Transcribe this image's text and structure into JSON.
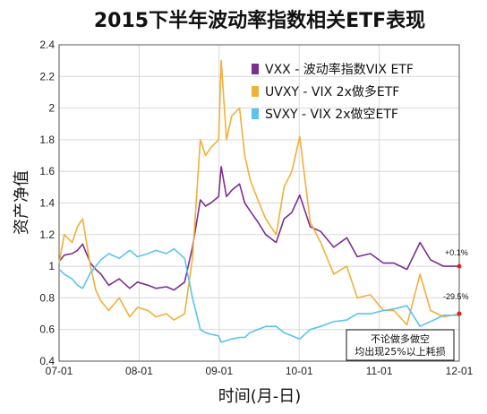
{
  "chart_data": {
    "type": "line",
    "title": "2015下半年波动率指数相关ETF表现",
    "xlabel": "时间(月-日)",
    "ylabel": "资产净值",
    "x_ticks": [
      "07-01",
      "08-01",
      "09-01",
      "10-01",
      "11-01",
      "12-01"
    ],
    "y_ticks": [
      "0.4",
      "0.6",
      "0.8",
      "1",
      "1.2",
      "1.4",
      "1.6",
      "1.8",
      "2",
      "2.2",
      "2.4"
    ],
    "xlim": [
      "2015-07-01",
      "2015-12-01"
    ],
    "ylim": [
      0.4,
      2.4
    ],
    "grid": true,
    "legend_position": "top-right",
    "series": [
      {
        "name": "VXX - 波动率指数VIX ETF",
        "color": "#7b2f8f",
        "x": [
          "2015-07-01",
          "2015-07-03",
          "2015-07-06",
          "2015-07-08",
          "2015-07-10",
          "2015-07-13",
          "2015-07-15",
          "2015-07-17",
          "2015-07-20",
          "2015-07-24",
          "2015-07-28",
          "2015-07-31",
          "2015-08-04",
          "2015-08-07",
          "2015-08-11",
          "2015-08-14",
          "2015-08-18",
          "2015-08-21",
          "2015-08-24",
          "2015-08-26",
          "2015-08-28",
          "2015-08-31",
          "2015-09-01",
          "2015-09-03",
          "2015-09-05",
          "2015-09-08",
          "2015-09-10",
          "2015-09-12",
          "2015-09-15",
          "2015-09-18",
          "2015-09-22",
          "2015-09-25",
          "2015-09-28",
          "2015-10-01",
          "2015-10-05",
          "2015-10-09",
          "2015-10-14",
          "2015-10-19",
          "2015-10-23",
          "2015-10-28",
          "2015-11-02",
          "2015-11-06",
          "2015-11-11",
          "2015-11-16",
          "2015-11-20",
          "2015-11-25",
          "2015-12-01"
        ],
        "values": [
          1.03,
          1.07,
          1.08,
          1.1,
          1.14,
          1.02,
          0.98,
          0.95,
          0.88,
          0.92,
          0.86,
          0.9,
          0.88,
          0.86,
          0.87,
          0.85,
          0.9,
          1.12,
          1.42,
          1.38,
          1.4,
          1.44,
          1.63,
          1.44,
          1.48,
          1.52,
          1.4,
          1.35,
          1.28,
          1.2,
          1.15,
          1.3,
          1.34,
          1.45,
          1.25,
          1.22,
          1.12,
          1.18,
          1.06,
          1.08,
          1.02,
          1.02,
          0.98,
          1.15,
          1.04,
          1.0,
          1.0
        ]
      },
      {
        "name": "UVXY - VIX 2x做多ETF",
        "color": "#f0b03a",
        "x": [
          "2015-07-01",
          "2015-07-03",
          "2015-07-06",
          "2015-07-08",
          "2015-07-10",
          "2015-07-13",
          "2015-07-15",
          "2015-07-17",
          "2015-07-20",
          "2015-07-24",
          "2015-07-28",
          "2015-07-31",
          "2015-08-04",
          "2015-08-07",
          "2015-08-11",
          "2015-08-14",
          "2015-08-18",
          "2015-08-21",
          "2015-08-24",
          "2015-08-26",
          "2015-08-28",
          "2015-08-31",
          "2015-09-01",
          "2015-09-03",
          "2015-09-05",
          "2015-09-08",
          "2015-09-10",
          "2015-09-12",
          "2015-09-15",
          "2015-09-18",
          "2015-09-22",
          "2015-09-25",
          "2015-09-28",
          "2015-10-01",
          "2015-10-05",
          "2015-10-09",
          "2015-10-14",
          "2015-10-19",
          "2015-10-23",
          "2015-10-28",
          "2015-11-02",
          "2015-11-06",
          "2015-11-11",
          "2015-11-16",
          "2015-11-20",
          "2015-11-25",
          "2015-12-01"
        ],
        "values": [
          1.02,
          1.2,
          1.15,
          1.25,
          1.3,
          1.0,
          0.85,
          0.78,
          0.72,
          0.8,
          0.68,
          0.74,
          0.72,
          0.68,
          0.7,
          0.66,
          0.7,
          1.05,
          1.8,
          1.7,
          1.75,
          1.8,
          2.3,
          1.8,
          1.95,
          2.0,
          1.7,
          1.55,
          1.42,
          1.3,
          1.2,
          1.5,
          1.6,
          1.82,
          1.28,
          1.15,
          0.95,
          1.0,
          0.8,
          0.82,
          0.72,
          0.72,
          0.63,
          0.95,
          0.72,
          0.68,
          0.7
        ]
      },
      {
        "name": "SVXY - VIX 2x做空ETF",
        "color": "#5bc3ec",
        "x": [
          "2015-07-01",
          "2015-07-03",
          "2015-07-06",
          "2015-07-08",
          "2015-07-10",
          "2015-07-13",
          "2015-07-15",
          "2015-07-17",
          "2015-07-20",
          "2015-07-24",
          "2015-07-28",
          "2015-07-31",
          "2015-08-04",
          "2015-08-07",
          "2015-08-11",
          "2015-08-14",
          "2015-08-18",
          "2015-08-21",
          "2015-08-24",
          "2015-08-26",
          "2015-08-28",
          "2015-08-31",
          "2015-09-01",
          "2015-09-03",
          "2015-09-05",
          "2015-09-08",
          "2015-09-10",
          "2015-09-12",
          "2015-09-15",
          "2015-09-18",
          "2015-09-22",
          "2015-09-25",
          "2015-09-28",
          "2015-10-01",
          "2015-10-05",
          "2015-10-09",
          "2015-10-14",
          "2015-10-19",
          "2015-10-23",
          "2015-10-28",
          "2015-11-02",
          "2015-11-06",
          "2015-11-11",
          "2015-11-16",
          "2015-11-20",
          "2015-11-25",
          "2015-12-01"
        ],
        "values": [
          0.98,
          0.95,
          0.92,
          0.88,
          0.86,
          0.96,
          1.0,
          1.04,
          1.08,
          1.05,
          1.1,
          1.06,
          1.08,
          1.1,
          1.08,
          1.11,
          1.05,
          0.8,
          0.6,
          0.58,
          0.57,
          0.56,
          0.52,
          0.53,
          0.54,
          0.55,
          0.55,
          0.58,
          0.6,
          0.62,
          0.62,
          0.58,
          0.56,
          0.54,
          0.6,
          0.62,
          0.65,
          0.66,
          0.7,
          0.7,
          0.72,
          0.73,
          0.75,
          0.62,
          0.65,
          0.69,
          0.69
        ]
      }
    ],
    "annotations": [
      {
        "text": "+0.1%",
        "series": 0
      },
      {
        "text": "-29.5%",
        "series": 1
      }
    ],
    "note_lines": [
      "不论做多做空",
      "均出现25%以上耗损"
    ]
  }
}
